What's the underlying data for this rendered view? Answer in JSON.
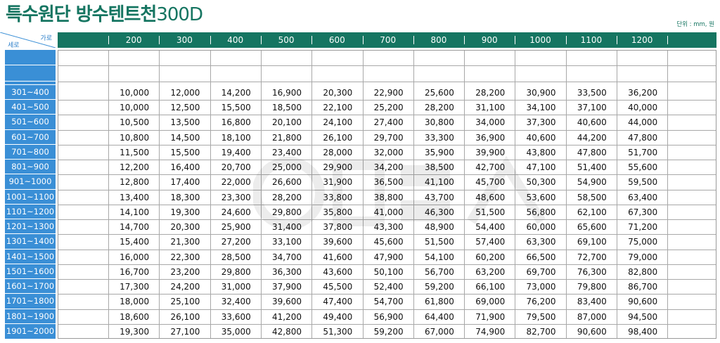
{
  "title": {
    "main": "특수원단 방수텐트천",
    "sub": "300D"
  },
  "unit_label": "단위 : mm, 원",
  "corner": {
    "top_label": "가로",
    "bottom_label": "세로"
  },
  "columns": [
    "200",
    "300",
    "400",
    "500",
    "600",
    "700",
    "800",
    "900",
    "1000",
    "1100",
    "1200"
  ],
  "rows": [
    {
      "label": "301~400",
      "values": [
        "10,000",
        "12,000",
        "14,200",
        "16,900",
        "20,300",
        "22,900",
        "25,600",
        "28,200",
        "30,900",
        "33,500",
        "36,200"
      ]
    },
    {
      "label": "401~500",
      "values": [
        "10,000",
        "12,500",
        "15,500",
        "18,500",
        "22,100",
        "25,200",
        "28,200",
        "31,100",
        "34,100",
        "37,100",
        "40,000"
      ]
    },
    {
      "label": "501~600",
      "values": [
        "10,500",
        "13,500",
        "16,800",
        "20,100",
        "24,100",
        "27,400",
        "30,800",
        "34,000",
        "37,300",
        "40,600",
        "44,000"
      ]
    },
    {
      "label": "601~700",
      "values": [
        "10,800",
        "14,500",
        "18,100",
        "21,800",
        "26,100",
        "29,700",
        "33,300",
        "36,900",
        "40,600",
        "44,200",
        "47,800"
      ]
    },
    {
      "label": "701~800",
      "values": [
        "11,500",
        "15,500",
        "19,400",
        "23,400",
        "28,000",
        "32,000",
        "35,900",
        "39,900",
        "43,800",
        "47,800",
        "51,700"
      ]
    },
    {
      "label": "801~900",
      "values": [
        "12,200",
        "16,400",
        "20,700",
        "25,000",
        "29,900",
        "34,200",
        "38,500",
        "42,700",
        "47,100",
        "51,400",
        "55,600"
      ]
    },
    {
      "label": "901~1000",
      "values": [
        "12,800",
        "17,400",
        "22,000",
        "26,600",
        "31,900",
        "36,500",
        "41,100",
        "45,700",
        "50,300",
        "54,900",
        "59,500"
      ]
    },
    {
      "label": "1001~1100",
      "values": [
        "13,400",
        "18,300",
        "23,300",
        "28,200",
        "33,800",
        "38,800",
        "43,700",
        "48,600",
        "53,600",
        "58,500",
        "63,400"
      ]
    },
    {
      "label": "1101~1200",
      "values": [
        "14,100",
        "19,300",
        "24,600",
        "29,800",
        "35,800",
        "41,000",
        "46,300",
        "51,500",
        "56,800",
        "62,100",
        "67,300"
      ]
    },
    {
      "label": "1201~1300",
      "values": [
        "14,700",
        "20,300",
        "25,900",
        "31,400",
        "37,800",
        "43,300",
        "48,900",
        "54,400",
        "60,000",
        "65,600",
        "71,200"
      ]
    },
    {
      "label": "1301~1400",
      "values": [
        "15,400",
        "21,300",
        "27,200",
        "33,100",
        "39,600",
        "45,600",
        "51,500",
        "57,400",
        "63,300",
        "69,100",
        "75,000"
      ]
    },
    {
      "label": "1401~1500",
      "values": [
        "16,000",
        "22,300",
        "28,500",
        "34,700",
        "41,600",
        "47,900",
        "54,100",
        "60,200",
        "66,500",
        "72,700",
        "79,000"
      ]
    },
    {
      "label": "1501~1600",
      "values": [
        "16,700",
        "23,200",
        "29,800",
        "36,300",
        "43,600",
        "50,100",
        "56,700",
        "63,200",
        "69,700",
        "76,300",
        "82,800"
      ]
    },
    {
      "label": "1601~1700",
      "values": [
        "17,300",
        "24,200",
        "31,000",
        "37,900",
        "45,500",
        "52,400",
        "59,200",
        "66,100",
        "73,000",
        "79,800",
        "86,700"
      ]
    },
    {
      "label": "1701~1800",
      "values": [
        "18,000",
        "25,100",
        "32,400",
        "39,600",
        "47,400",
        "54,700",
        "61,800",
        "69,000",
        "76,200",
        "83,400",
        "90,600"
      ]
    },
    {
      "label": "1801~1900",
      "values": [
        "18,600",
        "26,100",
        "33,600",
        "41,200",
        "49,400",
        "56,900",
        "64,400",
        "71,900",
        "79,500",
        "87,000",
        "94,500"
      ]
    },
    {
      "label": "1901~2000",
      "values": [
        "19,300",
        "27,100",
        "35,000",
        "42,800",
        "51,300",
        "59,200",
        "67,000",
        "74,900",
        "82,700",
        "90,600",
        "98,400"
      ]
    }
  ],
  "colors": {
    "brand_green": "#157561",
    "row_label_blue": "#3a8fd6",
    "grid_line": "#a8a8a8"
  }
}
